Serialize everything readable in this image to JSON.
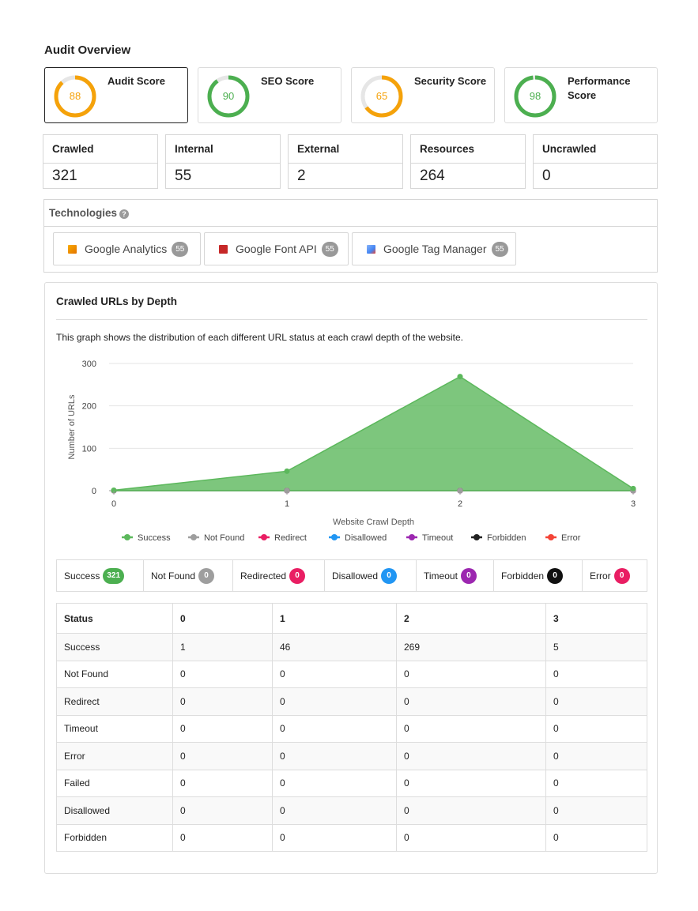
{
  "page": {
    "title": "Audit Overview"
  },
  "scores": [
    {
      "label": "Audit Score",
      "value": "88",
      "pct": 88,
      "color": "#f5a20a"
    },
    {
      "label": "SEO Score",
      "value": "90",
      "pct": 90,
      "color": "#4caf50"
    },
    {
      "label": "Security Score",
      "value": "65",
      "pct": 65,
      "color": "#f5a20a"
    },
    {
      "label": "Performance Score",
      "value": "98",
      "pct": 98,
      "color": "#4caf50"
    }
  ],
  "stats": [
    {
      "label": "Crawled",
      "value": "321"
    },
    {
      "label": "Internal",
      "value": "55"
    },
    {
      "label": "External",
      "value": "2"
    },
    {
      "label": "Resources",
      "value": "264"
    },
    {
      "label": "Uncrawled",
      "value": "0"
    }
  ],
  "technologies": {
    "title": "Technologies",
    "help_icon": "question-circle-icon",
    "items": [
      {
        "name": "Google Analytics",
        "count": "55",
        "icon": "google-analytics-icon"
      },
      {
        "name": "Google Font API",
        "count": "55",
        "icon": "google-font-api-icon"
      },
      {
        "name": "Google Tag Manager",
        "count": "55",
        "icon": "google-tag-manager-icon"
      }
    ]
  },
  "crawl": {
    "title": "Crawled URLs by Depth",
    "description": "This graph shows the distribution of each different URL status at each crawl depth of the website."
  },
  "chart_data": {
    "type": "area",
    "x": [
      0,
      1,
      2,
      3
    ],
    "xlabel": "Website Crawl Depth",
    "ylabel": "Number of URLs",
    "ylim": [
      0,
      300
    ],
    "yticks": [
      0,
      100,
      200,
      300
    ],
    "grid": true,
    "legend_position": "bottom",
    "series": [
      {
        "name": "Success",
        "values": [
          1,
          46,
          269,
          5
        ],
        "color": "#5cb85c"
      },
      {
        "name": "Not Found",
        "values": [
          0,
          0,
          0,
          0
        ],
        "color": "#9e9e9e"
      },
      {
        "name": "Redirect",
        "values": [
          0,
          0,
          0,
          0
        ],
        "color": "#e91e63"
      },
      {
        "name": "Disallowed",
        "values": [
          0,
          0,
          0,
          0
        ],
        "color": "#2196f3"
      },
      {
        "name": "Timeout",
        "values": [
          0,
          0,
          0,
          0
        ],
        "color": "#9c27b0"
      },
      {
        "name": "Forbidden",
        "values": [
          0,
          0,
          0,
          0
        ],
        "color": "#222222"
      },
      {
        "name": "Error",
        "values": [
          0,
          0,
          0,
          0
        ],
        "color": "#f44336"
      }
    ]
  },
  "status_summary": [
    {
      "label": "Success",
      "count": "321",
      "color": "#4caf50"
    },
    {
      "label": "Not Found",
      "count": "0",
      "color": "#9e9e9e"
    },
    {
      "label": "Redirected",
      "count": "0",
      "color": "#e91e63"
    },
    {
      "label": "Disallowed",
      "count": "0",
      "color": "#2196f3"
    },
    {
      "label": "Timeout",
      "count": "0",
      "color": "#9c27b0"
    },
    {
      "label": "Forbidden",
      "count": "0",
      "color": "#111111"
    },
    {
      "label": "Error",
      "count": "0",
      "color": "#e91e63"
    }
  ],
  "table": {
    "headers": [
      "Status",
      "0",
      "1",
      "2",
      "3"
    ],
    "rows": [
      [
        "Success",
        "1",
        "46",
        "269",
        "5"
      ],
      [
        "Not Found",
        "0",
        "0",
        "0",
        "0"
      ],
      [
        "Redirect",
        "0",
        "0",
        "0",
        "0"
      ],
      [
        "Timeout",
        "0",
        "0",
        "0",
        "0"
      ],
      [
        "Error",
        "0",
        "0",
        "0",
        "0"
      ],
      [
        "Failed",
        "0",
        "0",
        "0",
        "0"
      ],
      [
        "Disallowed",
        "0",
        "0",
        "0",
        "0"
      ],
      [
        "Forbidden",
        "0",
        "0",
        "0",
        "0"
      ]
    ]
  }
}
